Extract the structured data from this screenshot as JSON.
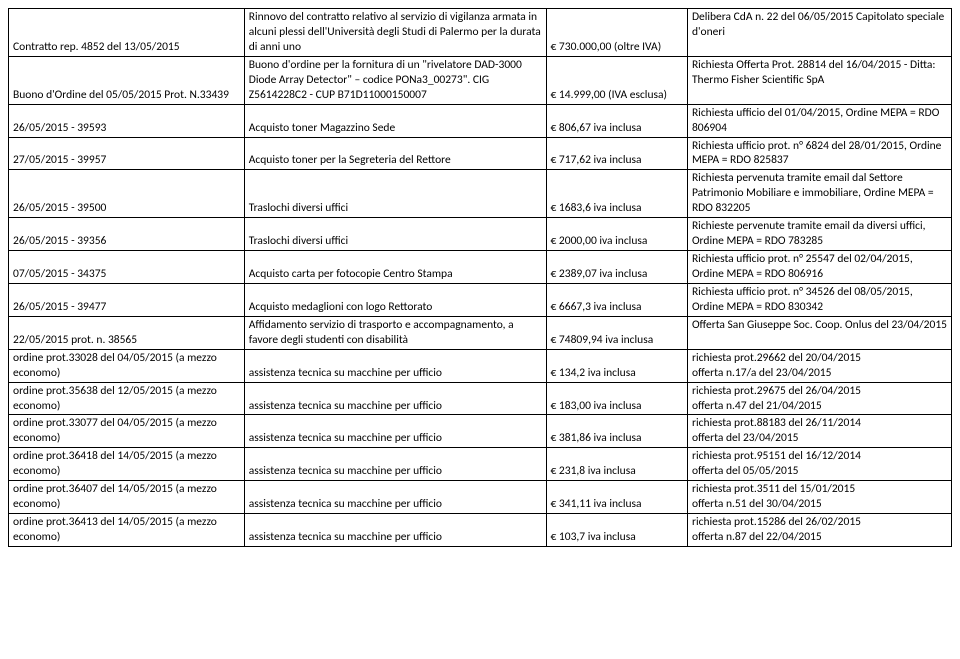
{
  "rows": [
    {
      "c1": "Contratto rep. 4852 del 13/05/2015",
      "c2": "Rinnovo del contratto relativo al servizio di vigilanza armata in alcuni plessi dell'Università degli Studi di Palermo per la durata di anni uno",
      "c3": "€ 730.000,00 (oltre IVA)",
      "c4": "Delibera CdA n. 22 del 06/05/2015 Capitolato speciale d'oneri"
    },
    {
      "c1": "Buono d'Ordine del 05/05/2015 Prot. N.33439",
      "c2": "Buono d'ordine per la fornitura di un \"rivelatore DAD-3000 Diode Array Detector\" – codice PONa3_00273\". CIG Z5614228C2 -  CUP B71D11000150007",
      "c3": "€ 14.999,00 (IVA esclusa)",
      "c4": "Richiesta Offerta Prot. 28814 del 16/04/2015 - Ditta: Thermo Fisher Scientific SpA"
    },
    {
      "c1": "26/05/2015 - 39593",
      "c2": "Acquisto toner Magazzino Sede",
      "c3": "€ 806,67 iva inclusa",
      "c4": "Richiesta ufficio del 01/04/2015, Ordine MEPA = RDO 806904"
    },
    {
      "c1": "27/05/2015 - 39957",
      "c2": "Acquisto toner per la Segreteria del Rettore",
      "c3": "€ 717,62 iva inclusa",
      "c4": "Richiesta ufficio prot. n° 6824 del 28/01/2015, Ordine MEPA = RDO 825837"
    },
    {
      "c1": "26/05/2015 - 39500",
      "c2": "Traslochi diversi uffici",
      "c3": "€ 1683,6 iva inclusa",
      "c4": "Richiesta pervenuta tramite email dal Settore Patrimonio Mobiliare e immobiliare, Ordine MEPA = RDO 832205"
    },
    {
      "c1": "26/05/2015 - 39356",
      "c2": "Traslochi diversi uffici",
      "c3": "€ 2000,00 iva inclusa",
      "c4": "Richieste pervenute tramite email da diversi uffici, Ordine MEPA = RDO 783285"
    },
    {
      "c1": "07/05/2015 - 34375",
      "c2": "Acquisto carta per fotocopie Centro Stampa",
      "c3": "€ 2389,07 iva inclusa",
      "c4": "Richiesta ufficio prot. n° 25547 del 02/04/2015, Ordine MEPA = RDO 806916"
    },
    {
      "c1": "26/05/2015 - 39477",
      "c2": "Acquisto medaglioni con logo Rettorato",
      "c3": "€ 6667,3 iva inclusa",
      "c4": "Richiesta ufficio prot. n° 34526 del 08/05/2015, Ordine MEPA = RDO 830342"
    },
    {
      "c1": "22/05/2015 prot. n. 38565",
      "c2": "Affidamento servizio di trasporto e accompagnamento, a favore degli studenti con disabilità",
      "c3": "€ 74809,94  iva inclusa",
      "c4": "Offerta San Giuseppe Soc. Coop. Onlus del 23/04/2015"
    },
    {
      "c1": "ordine prot.33028 del 04/05/2015 (a mezzo economo)",
      "c2": "assistenza tecnica su macchine per ufficio",
      "c3": "€ 134,2 iva inclusa",
      "c4": "richiesta prot.29662 del 20/04/2015\nofferta n.17/a del 23/04/2015"
    },
    {
      "c1": "ordine prot.35638 del 12/05/2015 (a mezzo economo)",
      "c2": "assistenza tecnica su macchine per ufficio",
      "c3": "€ 183,00 iva inclusa",
      "c4": "richiesta prot.29675 del 26/04/2015\nofferta n.47 del 21/04/2015"
    },
    {
      "c1": "ordine prot.33077 del 04/05/2015 (a mezzo economo)",
      "c2": "assistenza tecnica su macchine per ufficio",
      "c3": "€ 381,86  iva inclusa",
      "c4": "richiesta prot.88183 del 26/11/2014\nofferta del 23/04/2015"
    },
    {
      "c1": "ordine prot.36418 del 14/05/2015 (a mezzo economo)",
      "c2": "assistenza tecnica su macchine per ufficio",
      "c3": "€ 231,8 iva inclusa",
      "c4": "richiesta prot.95151 del 16/12/2014\nofferta del 05/05/2015"
    },
    {
      "c1": "ordine prot.36407 del 14/05/2015 (a mezzo economo)",
      "c2": "assistenza tecnica su macchine per ufficio",
      "c3": "€ 341,11  iva inclusa",
      "c4": "richiesta prot.3511 del 15/01/2015\nofferta n.51 del 30/04/2015"
    },
    {
      "c1": "ordine prot.36413 del 14/05/2015 (a mezzo economo)",
      "c2": "assistenza tecnica su macchine per ufficio",
      "c3": "€ 103,7 iva inclusa",
      "c4": "richiesta prot.15286 del 26/02/2015\nofferta n.87 del 22/04/2015"
    }
  ],
  "valign": {
    "c1": "bottom",
    "c2": "bottom",
    "c3": "bottom",
    "c4": "top"
  }
}
